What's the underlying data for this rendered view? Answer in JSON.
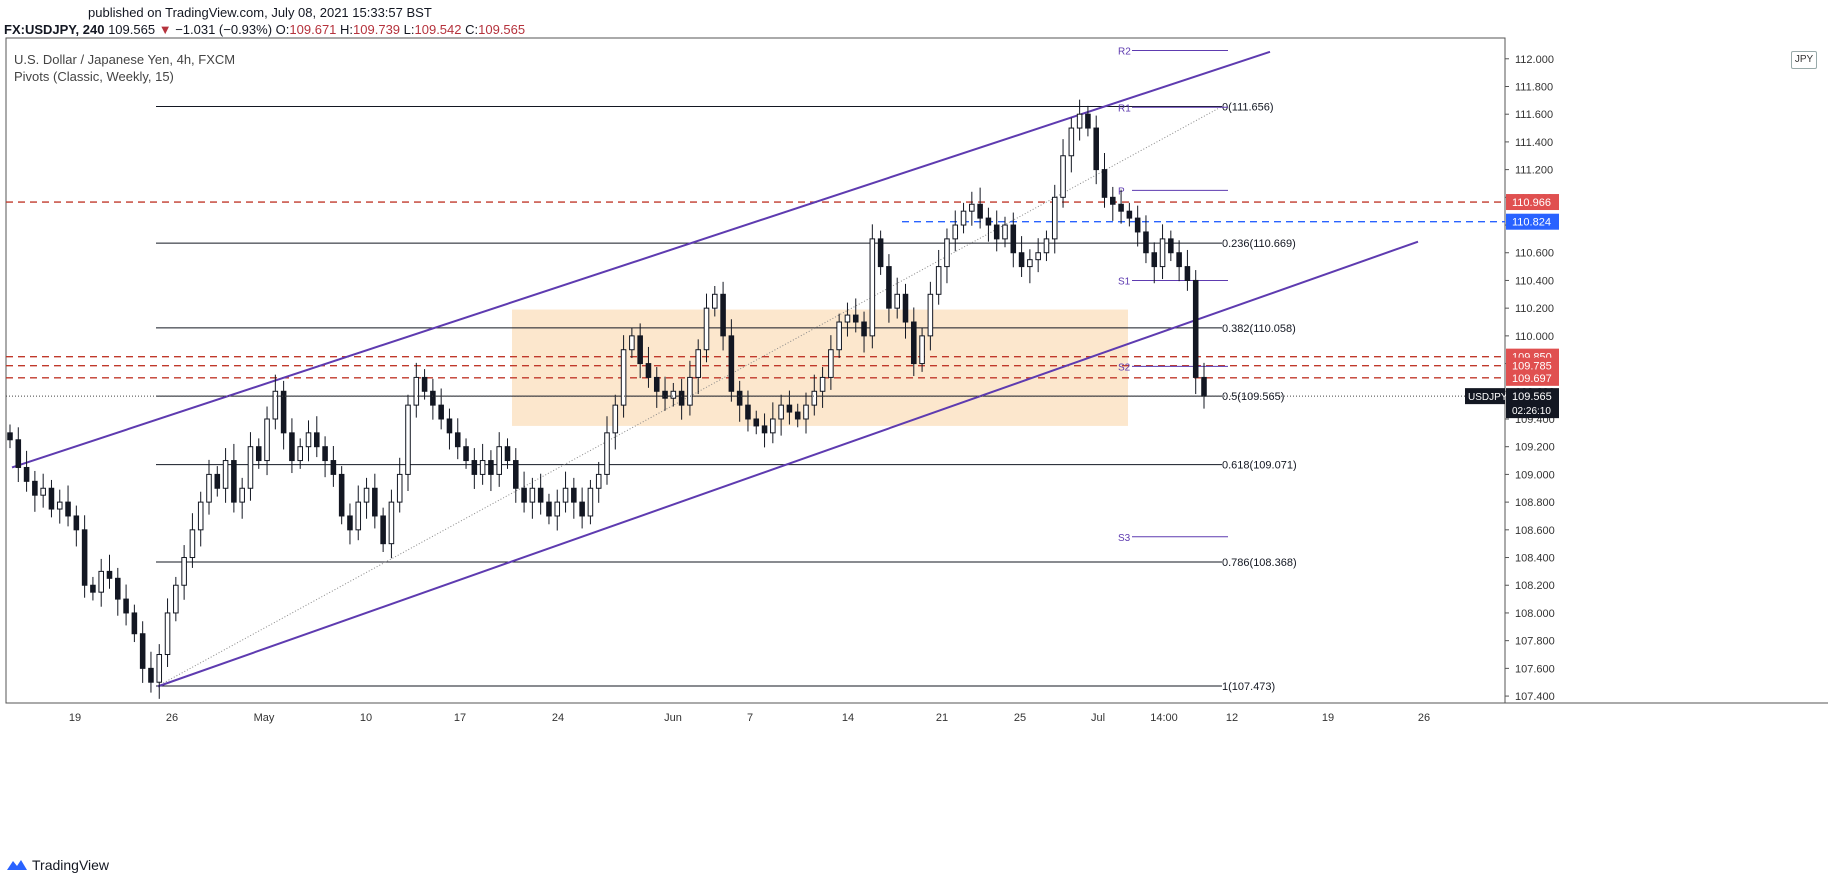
{
  "header": {
    "published": "published on TradingView.com, July 08, 2021 15:33:57 BST",
    "symbol": "FX:USDJPY, 240",
    "last": "109.565",
    "change": "−1.031 (−0.93%)",
    "o_label": "O:",
    "o": "109.671",
    "h_label": "H:",
    "h": "109.739",
    "l_label": "L:",
    "l": "109.542",
    "c_label": "C:",
    "c": "109.565"
  },
  "legend": {
    "title": "U.S. Dollar / Japanese Yen, 4h, FXCM",
    "indicator": "Pivots (Classic, Weekly, 15)"
  },
  "currency_badge": "JPY",
  "brand": {
    "name": "TradingView",
    "icon": "tradingview-logo-icon"
  },
  "colors": {
    "up": "#ffffff",
    "down": "#131722",
    "channel": "#5e3bb0",
    "fib": "#131722",
    "red_dashed": "#c0392b",
    "blue_dashed": "#2962ff",
    "zone": "#fbe3c4",
    "pivot": "#5e3bb0"
  },
  "chart_data": {
    "type": "candlestick",
    "ylim": [
      107.35,
      112.15
    ],
    "y_ticks": [
      107.4,
      107.6,
      107.8,
      108.0,
      108.2,
      108.4,
      108.6,
      108.8,
      109.0,
      109.2,
      109.4,
      109.6,
      109.8,
      110.0,
      110.2,
      110.4,
      110.6,
      110.8,
      111.0,
      111.2,
      111.4,
      111.6,
      111.8,
      112.0
    ],
    "y_tick_labels": [
      "107.400",
      "107.600",
      "107.800",
      "108.000",
      "108.200",
      "108.400",
      "108.600",
      "108.800",
      "109.000",
      "109.200",
      "109.400",
      "109.600",
      "109.800",
      "110.000",
      "110.200",
      "110.400",
      "110.600",
      "110.800",
      "111.000",
      "111.200",
      "111.400",
      "111.600",
      "111.800",
      "112.000"
    ],
    "x_tick_labels": [
      "19",
      "26",
      "May",
      "10",
      "17",
      "24",
      "Jun",
      "7",
      "14",
      "21",
      "25",
      "Jul",
      "14:00",
      "12",
      "19",
      "26"
    ],
    "fibonacci": [
      {
        "label": "0(111.656)",
        "value": 111.656
      },
      {
        "label": "0.236(110.669)",
        "value": 110.669
      },
      {
        "label": "0.382(110.058)",
        "value": 110.058
      },
      {
        "label": "0.5(109.565)",
        "value": 109.565
      },
      {
        "label": "0.618(109.071)",
        "value": 109.071
      },
      {
        "label": "0.786(108.368)",
        "value": 108.368
      },
      {
        "label": "1(107.473)",
        "value": 107.473
      }
    ],
    "pivots": [
      {
        "label": "R2",
        "value": 112.06
      },
      {
        "label": "R1",
        "value": 111.65
      },
      {
        "label": "P",
        "value": 111.05
      },
      {
        "label": "S1",
        "value": 110.4
      },
      {
        "label": "S2",
        "value": 109.78
      },
      {
        "label": "S3",
        "value": 108.55
      }
    ],
    "horizontal_levels": [
      {
        "label": "110.966",
        "value": 110.966,
        "style": "red-dashed"
      },
      {
        "label": "110.824",
        "value": 110.824,
        "style": "blue-dashed"
      },
      {
        "label": "109.850",
        "value": 109.85,
        "style": "red-dashed"
      },
      {
        "label": "109.785",
        "value": 109.785,
        "style": "red-dashed"
      },
      {
        "label": "109.697",
        "value": 109.697,
        "style": "red-dashed"
      }
    ],
    "last_price": {
      "label": "USDJPY",
      "value": 109.565,
      "price": "109.565",
      "countdown": "02:26:10"
    },
    "zone": {
      "low": 109.35,
      "high": 110.19
    },
    "channel_upper": [
      [
        0.0,
        109.05
      ],
      [
        1.0,
        112.05
      ]
    ],
    "channel_lower": [
      [
        0.0,
        107.47
      ],
      [
        1.0,
        110.68
      ]
    ],
    "close_series": [
      109.25,
      109.05,
      108.95,
      108.85,
      108.9,
      108.75,
      108.8,
      108.7,
      108.6,
      108.2,
      108.15,
      108.3,
      108.25,
      108.1,
      108.0,
      107.85,
      107.6,
      107.5,
      107.7,
      108.0,
      108.2,
      108.4,
      108.6,
      108.8,
      109.0,
      108.9,
      109.1,
      108.8,
      108.9,
      109.2,
      109.1,
      109.4,
      109.6,
      109.3,
      109.1,
      109.2,
      109.3,
      109.2,
      109.1,
      109.0,
      108.7,
      108.6,
      108.8,
      108.9,
      108.7,
      108.5,
      108.8,
      109.0,
      109.5,
      109.7,
      109.6,
      109.5,
      109.4,
      109.3,
      109.2,
      109.1,
      109.0,
      109.1,
      109.0,
      109.2,
      109.1,
      108.9,
      108.8,
      108.9,
      108.8,
      108.7,
      108.8,
      108.9,
      108.8,
      108.7,
      108.9,
      109.0,
      109.3,
      109.5,
      109.9,
      110.0,
      109.8,
      109.7,
      109.6,
      109.55,
      109.6,
      109.5,
      109.7,
      109.9,
      110.2,
      110.3,
      110.0,
      109.6,
      109.5,
      109.4,
      109.35,
      109.3,
      109.4,
      109.5,
      109.45,
      109.4,
      109.5,
      109.6,
      109.7,
      109.9,
      110.1,
      110.15,
      110.1,
      110.0,
      110.7,
      110.5,
      110.2,
      110.3,
      110.1,
      109.8,
      110.0,
      110.3,
      110.5,
      110.7,
      110.8,
      110.9,
      110.95,
      110.85,
      110.8,
      110.7,
      110.8,
      110.6,
      110.5,
      110.55,
      110.6,
      110.7,
      111.0,
      111.3,
      111.5,
      111.6,
      111.5,
      111.2,
      111.0,
      110.95,
      110.9,
      110.85,
      110.75,
      110.6,
      110.5,
      110.7,
      110.6,
      110.5,
      110.4,
      109.7,
      109.565
    ]
  }
}
